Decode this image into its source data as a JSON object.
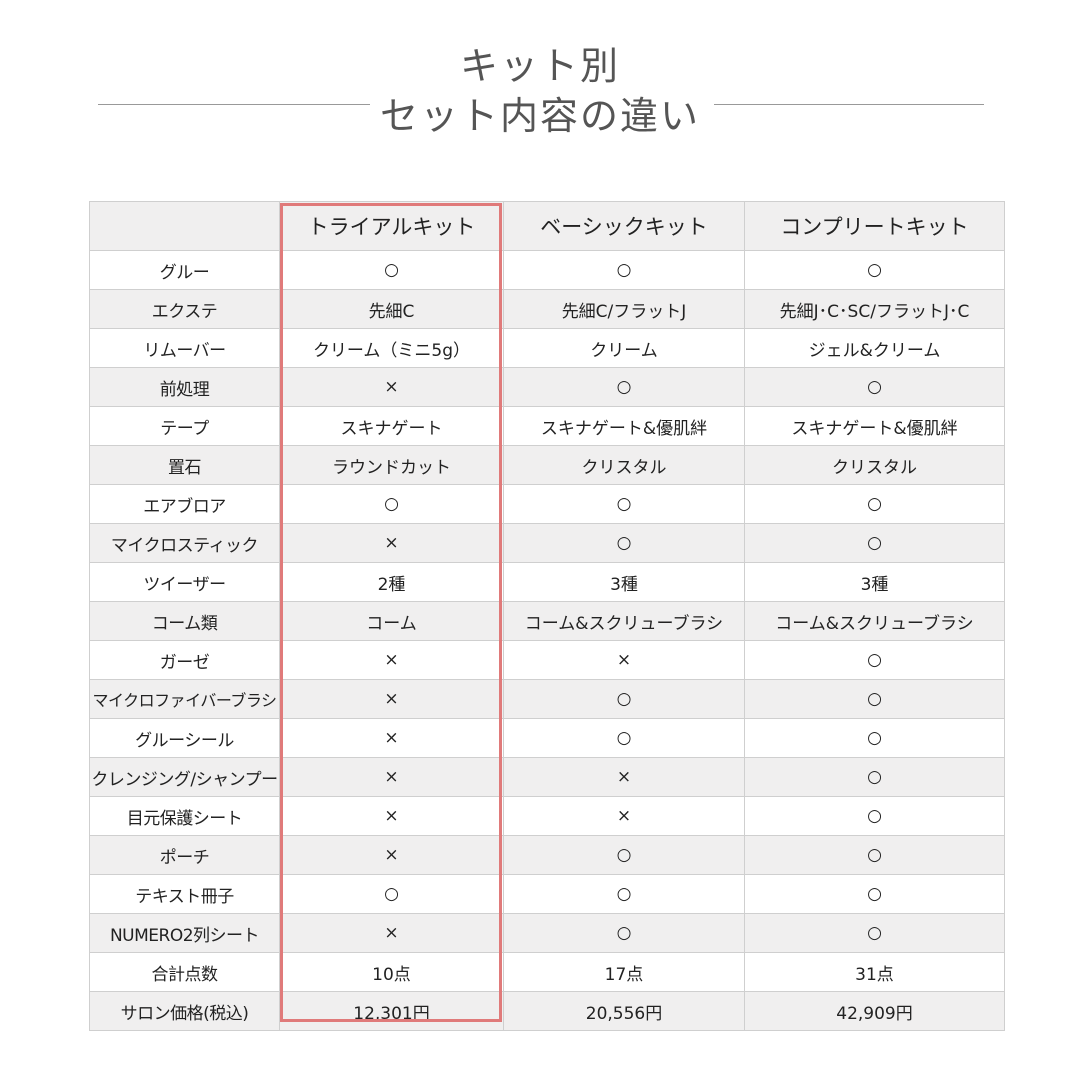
{
  "title": {
    "line1": "キット別",
    "line2": "セット内容の違い"
  },
  "colors": {
    "highlight": "#e07a7a",
    "stripe": "#f0efef",
    "title_text": "#555555"
  },
  "table": {
    "headers": [
      "",
      "トライアルキット",
      "ベーシックキット",
      "コンプリートキット"
    ],
    "rows": [
      {
        "label": "グルー",
        "trial": "○",
        "basic": "○",
        "complete": "○"
      },
      {
        "label": "エクステ",
        "trial": "先細C",
        "basic": "先細C/フラットJ",
        "complete": "先細J･C･SC/フラットJ･C"
      },
      {
        "label": "リムーバー",
        "trial": "クリーム（ミニ5g）",
        "basic": "クリーム",
        "complete": "ジェル&クリーム"
      },
      {
        "label": "前処理",
        "trial": "×",
        "basic": "○",
        "complete": "○"
      },
      {
        "label": "テープ",
        "trial": "スキナゲート",
        "basic": "スキナゲート&優肌絆",
        "complete": "スキナゲート&優肌絆"
      },
      {
        "label": "置石",
        "trial": "ラウンドカット",
        "basic": "クリスタル",
        "complete": "クリスタル"
      },
      {
        "label": "エアブロア",
        "trial": "○",
        "basic": "○",
        "complete": "○"
      },
      {
        "label": "マイクロスティック",
        "trial": "×",
        "basic": "○",
        "complete": "○"
      },
      {
        "label": "ツイーザー",
        "trial": "2種",
        "basic": "3種",
        "complete": "3種"
      },
      {
        "label": "コーム類",
        "trial": "コーム",
        "basic": "コーム&スクリューブラシ",
        "complete": "コーム&スクリューブラシ"
      },
      {
        "label": "ガーゼ",
        "trial": "×",
        "basic": "×",
        "complete": "○"
      },
      {
        "label": "マイクロファイバーブラシ",
        "trial": "×",
        "basic": "○",
        "complete": "○"
      },
      {
        "label": "グルーシール",
        "trial": "×",
        "basic": "○",
        "complete": "○"
      },
      {
        "label": "クレンジング/シャンプー",
        "trial": "×",
        "basic": "×",
        "complete": "○"
      },
      {
        "label": "目元保護シート",
        "trial": "×",
        "basic": "×",
        "complete": "○"
      },
      {
        "label": "ポーチ",
        "trial": "×",
        "basic": "○",
        "complete": "○"
      },
      {
        "label": "テキスト冊子",
        "trial": "○",
        "basic": "○",
        "complete": "○"
      },
      {
        "label": "NUMERO2列シート",
        "trial": "×",
        "basic": "○",
        "complete": "○"
      },
      {
        "label": "合計点数",
        "trial": "10点",
        "basic": "17点",
        "complete": "31点"
      },
      {
        "label": "サロン価格(税込)",
        "trial": "12,301円",
        "basic": "20,556円",
        "complete": "42,909円"
      }
    ]
  }
}
